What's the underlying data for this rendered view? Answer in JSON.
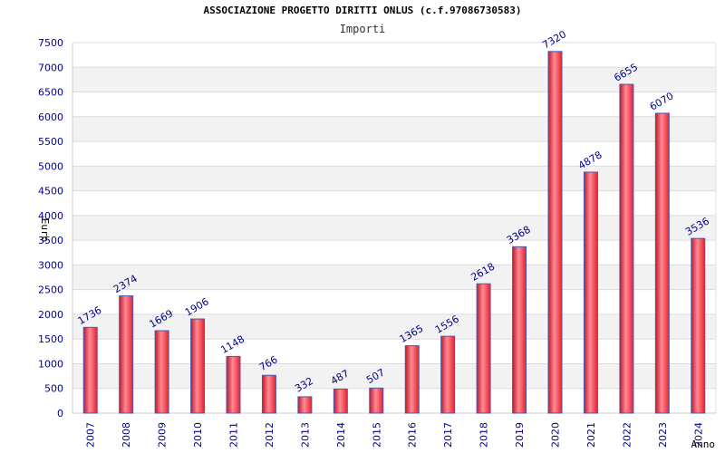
{
  "chart_data": {
    "type": "bar",
    "title": "ASSOCIAZIONE PROGETTO DIRITTI ONLUS (c.f.97086730583)",
    "subtitle": "Importi",
    "xlabel": "Anno",
    "ylabel": "Euro",
    "categories": [
      "2007",
      "2008",
      "2009",
      "2010",
      "2011",
      "2012",
      "2013",
      "2014",
      "2015",
      "2016",
      "2017",
      "2018",
      "2019",
      "2020",
      "2021",
      "2022",
      "2023",
      "2024"
    ],
    "values": [
      1736,
      2374,
      1669,
      1906,
      1148,
      766,
      332,
      487,
      507,
      1365,
      1556,
      2618,
      3368,
      7320,
      4878,
      6655,
      6070,
      3536
    ],
    "ylim": [
      0,
      7500
    ],
    "yticks": [
      0,
      500,
      1000,
      1500,
      2000,
      2500,
      3000,
      3500,
      4000,
      4500,
      5000,
      5500,
      6000,
      6500,
      7000,
      7500
    ],
    "grid": true,
    "colors": {
      "bar_edge": "#c0182a",
      "bar_mid": "#ff8a93",
      "bar_base": "#e8202f",
      "bar_border": "#4a5ab0",
      "grid_band": "#f2f2f2",
      "tick_text": "#00008b"
    }
  }
}
